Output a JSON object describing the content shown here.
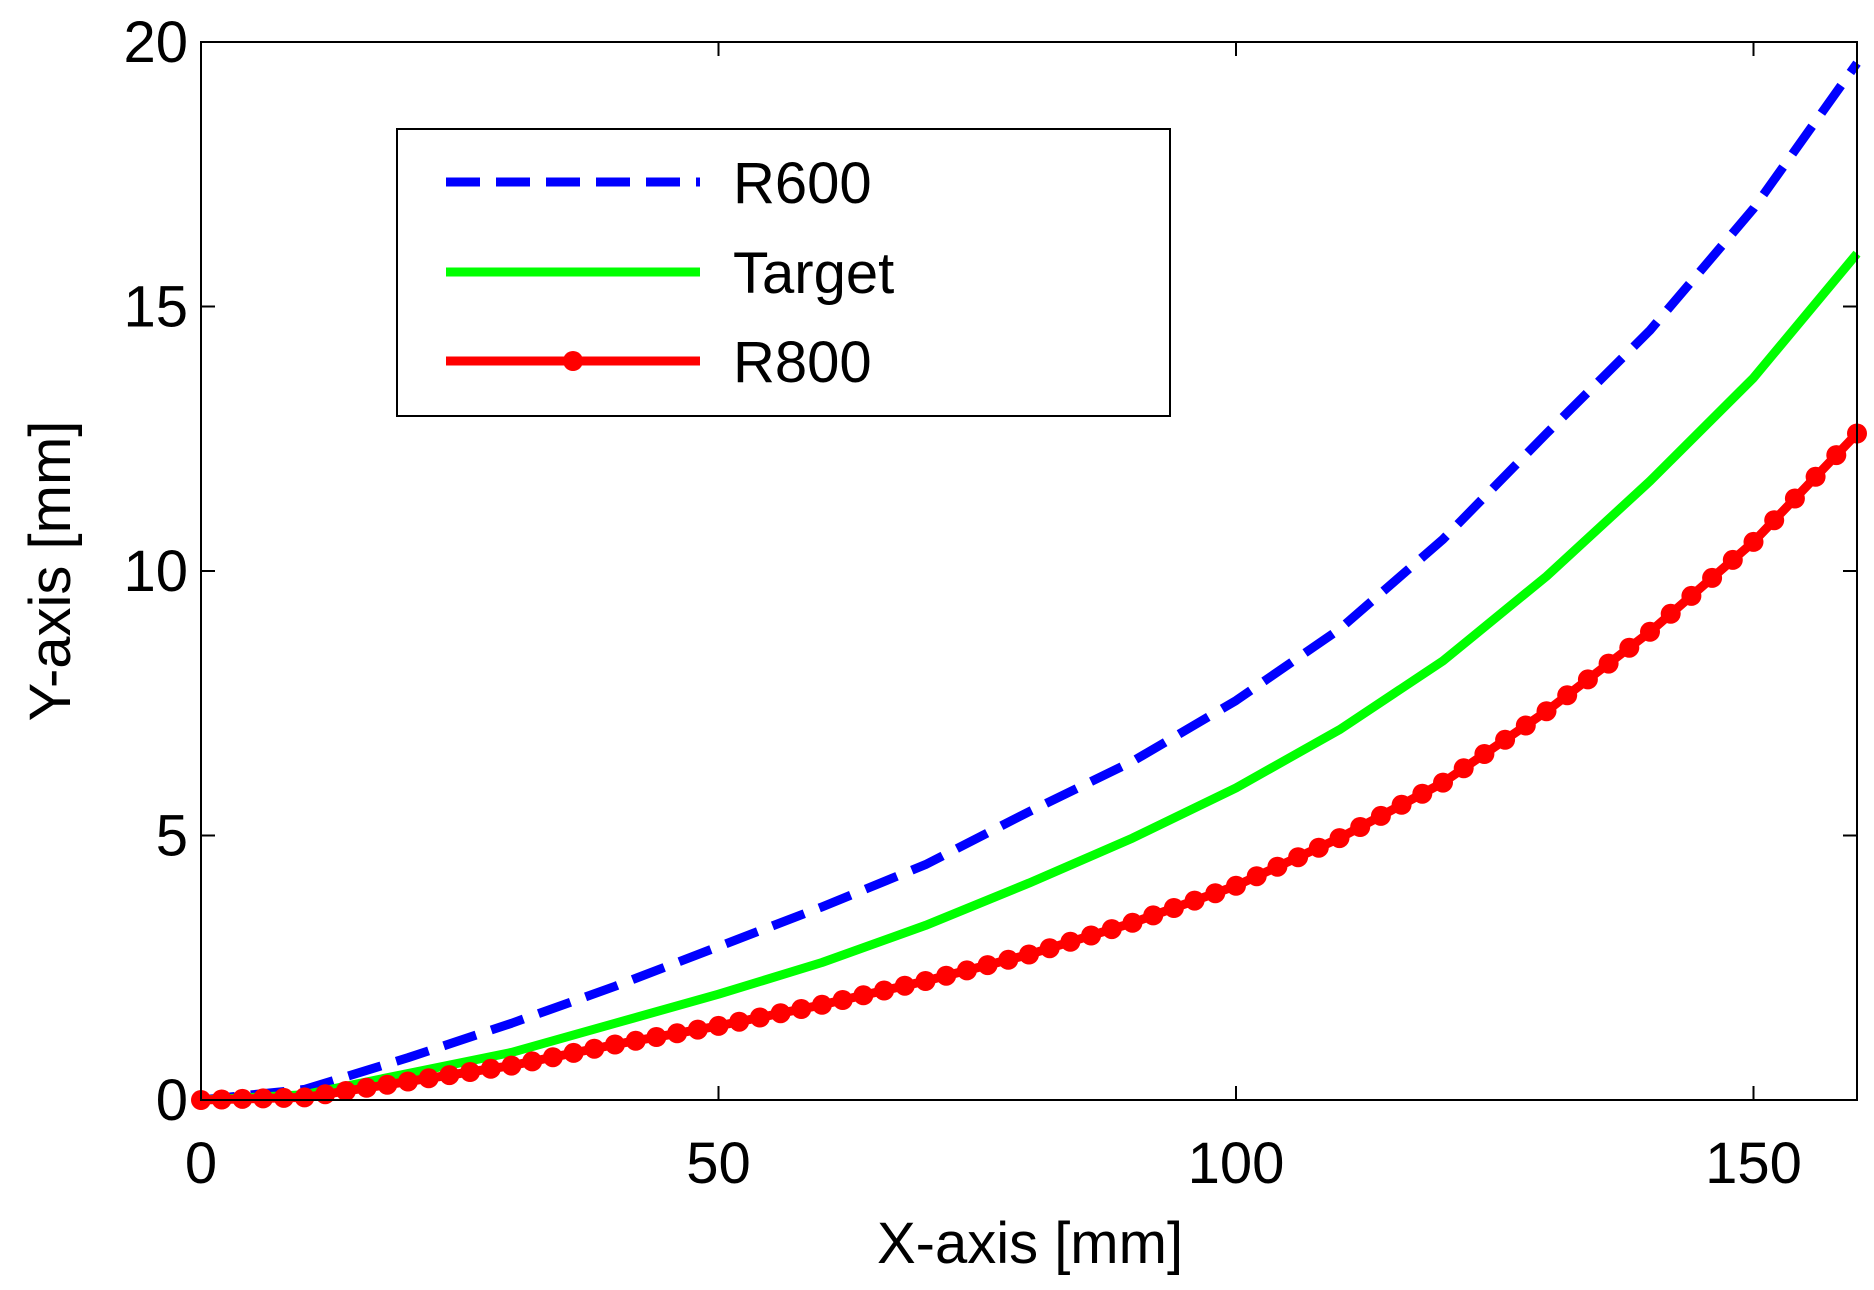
{
  "chart_data": {
    "type": "line",
    "title": "",
    "xlabel": "X-axis [mm]",
    "ylabel": "Y-axis [mm]",
    "xlim": [
      0,
      160
    ],
    "ylim": [
      0,
      20
    ],
    "xticks": [
      0,
      50,
      100,
      150
    ],
    "yticks": [
      0,
      5,
      10,
      15,
      20
    ],
    "xtick_labels": [
      "0",
      "50",
      "100",
      "150"
    ],
    "ytick_labels": [
      "0",
      "5",
      "10",
      "15",
      "20"
    ],
    "grid": false,
    "legend_position": "top-left",
    "x": [
      0,
      10,
      20,
      30,
      40,
      50,
      60,
      70,
      80,
      90,
      100,
      110,
      120,
      130,
      140,
      150,
      160
    ],
    "series": [
      {
        "name": "R600",
        "color": "#0000ff",
        "style": "dashed",
        "marker": "none",
        "values": [
          0.0,
          0.2,
          0.8,
          1.45,
          2.15,
          2.9,
          3.65,
          4.45,
          5.45,
          6.4,
          7.55,
          8.9,
          10.6,
          12.6,
          14.55,
          16.85,
          19.6
        ]
      },
      {
        "name": "Target",
        "color": "#00ff00",
        "style": "solid",
        "marker": "none",
        "values": [
          0.0,
          0.1,
          0.5,
          0.9,
          1.45,
          2.0,
          2.6,
          3.3,
          4.1,
          4.95,
          5.9,
          7.0,
          8.3,
          9.9,
          11.7,
          13.65,
          16.0
        ]
      },
      {
        "name": "R800",
        "color": "#ff0000",
        "style": "solid",
        "marker": "circle",
        "values": [
          0.0,
          0.05,
          0.35,
          0.65,
          1.05,
          1.4,
          1.8,
          2.25,
          2.75,
          3.35,
          4.05,
          4.95,
          6.0,
          7.35,
          8.85,
          10.55,
          12.6
        ]
      }
    ]
  }
}
